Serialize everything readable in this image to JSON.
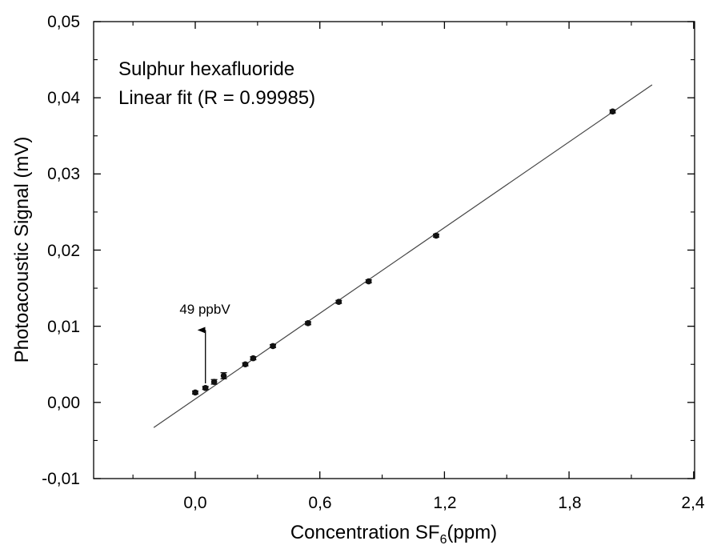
{
  "chart_data": {
    "type": "scatter",
    "xlabel": {
      "text": "Concentration SF",
      "sub": "6",
      "suffix": "(ppm)"
    },
    "ylabel": "Photoacoustic Signal (mV)",
    "xlim": [
      -0.42,
      2.4
    ],
    "ylim": [
      -0.01,
      0.05
    ],
    "x_ticks": [
      0.0,
      0.6,
      1.2,
      1.8,
      2.4
    ],
    "x_tick_labels": [
      "0,0",
      "0,6",
      "1,2",
      "1,8",
      "2,4"
    ],
    "y_ticks": [
      -0.01,
      0.0,
      0.01,
      0.02,
      0.03,
      0.04,
      0.05
    ],
    "y_tick_labels": [
      "-0,01",
      "0,00",
      "0,01",
      "0,02",
      "0,03",
      "0,04",
      "0,05"
    ],
    "grid": false,
    "annotations": [
      {
        "text": "Sulphur hexafluoride"
      },
      {
        "text": "Linear fit (R = 0.99985)"
      },
      {
        "text": "49 ppbV",
        "x": 0.049,
        "y_arrow_from": 0.0025,
        "y_arrow_to": 0.0095
      }
    ],
    "series": [
      {
        "type": "scatter",
        "x": [
          0.0,
          0.049,
          0.091,
          0.137,
          0.241,
          0.279,
          0.374,
          0.543,
          0.691,
          0.835,
          1.16,
          2.01
        ],
        "y": [
          0.0013,
          0.0019,
          0.0027,
          0.0035,
          0.005,
          0.0058,
          0.0074,
          0.0104,
          0.0132,
          0.0159,
          0.0219,
          0.0382
        ],
        "yerr": [
          0.0002,
          0.0002,
          0.0003,
          0.0004,
          0.0002,
          0.0002,
          0.0002,
          0.0002,
          0.0002,
          0.0002,
          0.0002,
          0.0002
        ]
      },
      {
        "type": "line",
        "x": [
          -0.2,
          2.2
        ],
        "y": [
          -0.0033,
          0.0417
        ]
      }
    ]
  }
}
